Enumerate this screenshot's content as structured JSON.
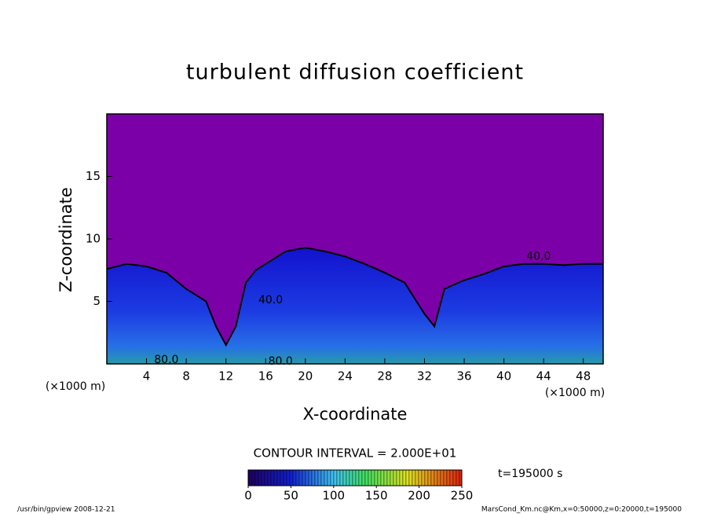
{
  "chart_data": {
    "type": "contour",
    "title": "turbulent diffusion coefficient",
    "xlabel": "X-coordinate",
    "ylabel": "Z-coordinate",
    "x_unit_labels": [
      "(×1000 m)",
      "(×1000 m)"
    ],
    "xlim": [
      0,
      50
    ],
    "xticks": [
      4,
      8,
      12,
      16,
      20,
      24,
      28,
      32,
      36,
      40,
      44,
      48
    ],
    "ylim": [
      0,
      20
    ],
    "yticks": [
      5,
      10,
      15
    ],
    "background_color": "#7c00a8",
    "field_color": "#1818d8",
    "field_top": {
      "x": [
        0,
        2,
        4,
        6,
        8,
        10,
        11,
        12,
        13,
        14,
        15,
        16,
        18,
        20,
        22,
        24,
        26,
        28,
        30,
        32,
        33,
        34,
        36,
        38,
        40,
        42,
        44,
        46,
        48,
        50
      ],
      "z": [
        7.6,
        8,
        7.8,
        7.3,
        6,
        5,
        3,
        1.5,
        3,
        6.5,
        7.5,
        8,
        9,
        9.3,
        9,
        8.6,
        8,
        7.3,
        6.5,
        4,
        3,
        6,
        6.7,
        7.2,
        7.8,
        8,
        8,
        7.9,
        8,
        8
      ]
    },
    "contour_labels": [
      {
        "value": 40,
        "label": "40.0",
        "x": 16.5,
        "z": 5.1
      },
      {
        "value": 40,
        "label": "40.0",
        "x": 43.5,
        "z": 8.6
      },
      {
        "value": 80,
        "label": "80.0",
        "x": 6,
        "z": 0.3
      },
      {
        "value": 80,
        "label": "80.0",
        "x": 17.5,
        "z": 0.2
      }
    ],
    "contour_interval_text": "CONTOUR INTERVAL = 2.000E+01",
    "time_label": "t=195000 s",
    "colorbar": {
      "clim": [
        0,
        250
      ],
      "ticks": [
        0,
        50,
        100,
        150,
        200,
        250
      ]
    },
    "footer_left": "/usr/bin/gpview  2008-12-21",
    "footer_right": "MarsCond_Km.nc@Km,x=0:50000,z=0:20000,t=195000"
  }
}
